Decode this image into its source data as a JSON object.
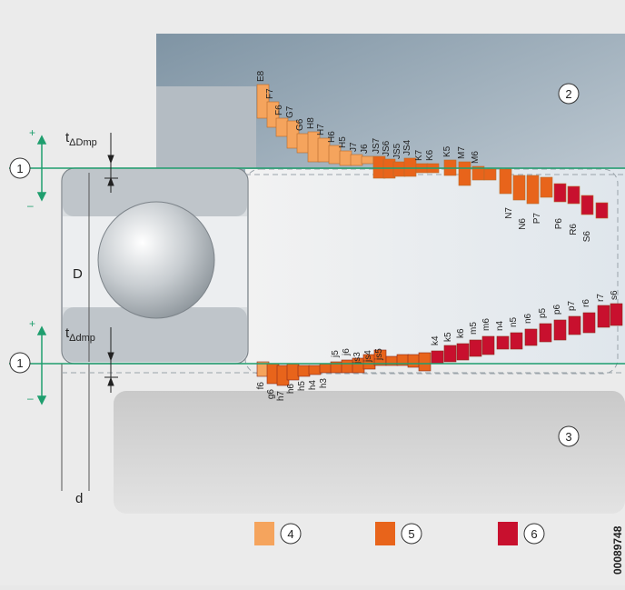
{
  "callouts": {
    "c1_top": "1",
    "c1_bottom": "1",
    "c2": "2",
    "c3": "3"
  },
  "labels": {
    "t_dmp_upper_main": "t",
    "t_dmp_upper_sub": "ΔDmp",
    "t_dmp_lower_main": "t",
    "t_dmp_lower_sub": "Δdmp",
    "D": "D",
    "d": "d",
    "plus_top": "+",
    "minus_top": "–",
    "plus_bottom": "+",
    "minus_bottom": "–"
  },
  "legend": [
    {
      "num": "4",
      "color": "#f5a45d"
    },
    {
      "num": "5",
      "color": "#e8641b"
    },
    {
      "num": "6",
      "color": "#c8102e"
    }
  ],
  "drawing_id": "00089748",
  "housing_tolerances": [
    "E8",
    "F7",
    "F6",
    "G7",
    "G6",
    "H8",
    "H7",
    "H6",
    "H5",
    "J7",
    "J6",
    "JS7",
    "JS6",
    "JS5",
    "JS4",
    "K7",
    "K6",
    "K5",
    "M7",
    "M6",
    "N7",
    "N6",
    "P7",
    "P6",
    "R6",
    "S6"
  ],
  "shaft_tolerances": [
    "f6",
    "g6",
    "h7",
    "h6",
    "h5",
    "h4",
    "h3",
    "j5",
    "j6",
    "js3",
    "js4",
    "js5",
    "k4",
    "k5",
    "k6",
    "m5",
    "m6",
    "n4",
    "n5",
    "n6",
    "p5",
    "p6",
    "p7",
    "r6",
    "r7",
    "s6",
    "s7"
  ],
  "colors": {
    "light": "#f5a45d",
    "medium": "#e8641b",
    "tight": "#c8102e",
    "green": "#1f9e6e"
  }
}
